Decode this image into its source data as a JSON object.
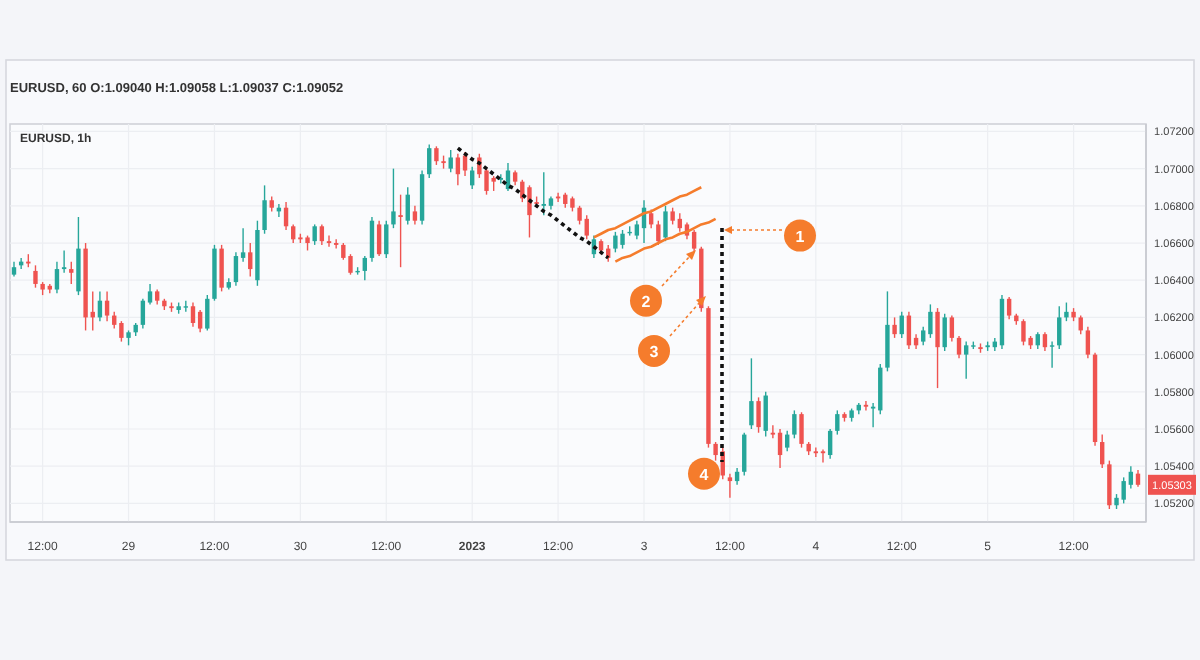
{
  "chart_data": {
    "type": "candlestick",
    "title": "EURUSD, 60 O:1.09040 H:1.09058 L:1.09037 C:1.09052",
    "subtitle": "EURUSD, 1h",
    "categories": [
      null,
      null,
      null,
      null,
      "12:00",
      null,
      null,
      null,
      null,
      null,
      null,
      null,
      null,
      null,
      null,
      null,
      "29",
      null,
      null,
      null,
      null,
      null,
      null,
      null,
      null,
      null,
      null,
      null,
      "12:00",
      null,
      null,
      null,
      null,
      null,
      null,
      null,
      null,
      null,
      null,
      null,
      "30",
      null,
      null,
      null,
      null,
      null,
      null,
      null,
      null,
      null,
      null,
      null,
      "12:00",
      null,
      null,
      null,
      null,
      null,
      null,
      null,
      null,
      null,
      null,
      null,
      "2023",
      null,
      null,
      null,
      null,
      null,
      null,
      null,
      null,
      null,
      null,
      null,
      "12:00",
      null,
      null,
      null,
      null,
      null,
      null,
      null,
      null,
      null,
      null,
      null,
      "3",
      null,
      null,
      null,
      null,
      null,
      null,
      null,
      null,
      null,
      null,
      null,
      "12:00",
      null,
      null,
      null,
      null,
      null,
      null,
      null,
      null,
      null,
      null,
      null,
      "4",
      null,
      null,
      null,
      null,
      null,
      null,
      null,
      null,
      null,
      null,
      null,
      "12:00",
      null,
      null,
      null,
      null,
      null,
      null,
      null,
      null,
      null,
      null,
      null,
      "5",
      null,
      null,
      null,
      null,
      null,
      null,
      null,
      null,
      null,
      null,
      null,
      "12:00",
      null,
      null,
      null,
      null,
      null,
      null,
      null,
      null,
      null
    ],
    "ohlc": [
      [
        1.0643,
        1.065,
        1.0642,
        1.0647
      ],
      [
        1.0648,
        1.0652,
        1.0646,
        1.065
      ],
      [
        1.065,
        1.0654,
        1.0647,
        1.0649
      ],
      [
        1.0645,
        1.0648,
        1.0636,
        1.0638
      ],
      [
        1.0638,
        1.0639,
        1.0632,
        1.0635
      ],
      [
        1.0637,
        1.0638,
        1.0633,
        1.0635
      ],
      [
        1.0635,
        1.065,
        1.0633,
        1.0646
      ],
      [
        1.0646,
        1.0656,
        1.0644,
        1.0647
      ],
      [
        1.0646,
        1.065,
        1.0638,
        1.0644
      ],
      [
        1.0634,
        1.0674,
        1.0632,
        1.0657
      ],
      [
        1.0657,
        1.066,
        1.0613,
        1.062
      ],
      [
        1.0623,
        1.0634,
        1.0613,
        1.062
      ],
      [
        1.062,
        1.0634,
        1.0618,
        1.0629
      ],
      [
        1.0629,
        1.0634,
        1.0618,
        1.0621
      ],
      [
        1.0621,
        1.0623,
        1.0614,
        1.0616
      ],
      [
        1.0617,
        1.0618,
        1.0607,
        1.0609
      ],
      [
        1.0609,
        1.0613,
        1.0605,
        1.0612
      ],
      [
        1.0612,
        1.0617,
        1.061,
        1.0616
      ],
      [
        1.0616,
        1.063,
        1.0614,
        1.0629
      ],
      [
        1.0628,
        1.0638,
        1.0627,
        1.0634
      ],
      [
        1.0634,
        1.0635,
        1.0627,
        1.0629
      ],
      [
        1.0629,
        1.063,
        1.0624,
        1.0626
      ],
      [
        1.0626,
        1.0628,
        1.0623,
        1.0625
      ],
      [
        1.0624,
        1.0628,
        1.0622,
        1.0626
      ],
      [
        1.0626,
        1.0629,
        1.0623,
        1.0626
      ],
      [
        1.0626,
        1.0628,
        1.0615,
        1.0617
      ],
      [
        1.0623,
        1.0624,
        1.0612,
        1.0614
      ],
      [
        1.0614,
        1.0632,
        1.0613,
        1.063
      ],
      [
        1.063,
        1.0659,
        1.0629,
        1.0657
      ],
      [
        1.0657,
        1.0659,
        1.0634,
        1.0636
      ],
      [
        1.0636,
        1.0641,
        1.0635,
        1.0639
      ],
      [
        1.0639,
        1.0655,
        1.0637,
        1.0653
      ],
      [
        1.0652,
        1.0668,
        1.065,
        1.0655
      ],
      [
        1.0655,
        1.066,
        1.0642,
        1.0646
      ],
      [
        1.064,
        1.0672,
        1.0637,
        1.0667
      ],
      [
        1.0667,
        1.0691,
        1.0665,
        1.0683
      ],
      [
        1.0683,
        1.0685,
        1.0677,
        1.0679
      ],
      [
        1.0677,
        1.0681,
        1.0674,
        1.0679
      ],
      [
        1.0679,
        1.0682,
        1.0667,
        1.0669
      ],
      [
        1.0669,
        1.067,
        1.066,
        1.0662
      ],
      [
        1.0663,
        1.0665,
        1.066,
        1.0662
      ],
      [
        1.0663,
        1.0664,
        1.0656,
        1.066
      ],
      [
        1.0661,
        1.067,
        1.0659,
        1.0669
      ],
      [
        1.0669,
        1.067,
        1.0659,
        1.0661
      ],
      [
        1.0661,
        1.0664,
        1.0658,
        1.066
      ],
      [
        1.066,
        1.0662,
        1.0657,
        1.0659
      ],
      [
        1.0659,
        1.066,
        1.0651,
        1.0652
      ],
      [
        1.0653,
        1.0654,
        1.0643,
        1.0644
      ],
      [
        1.0645,
        1.0647,
        1.0643,
        1.0645
      ],
      [
        1.0645,
        1.0653,
        1.064,
        1.0652
      ],
      [
        1.0652,
        1.0674,
        1.065,
        1.0672
      ],
      [
        1.067,
        1.0672,
        1.0653,
        1.0654
      ],
      [
        1.0654,
        1.0672,
        1.0652,
        1.067
      ],
      [
        1.067,
        1.07,
        1.0668,
        1.0677
      ],
      [
        1.0675,
        1.0686,
        1.0647,
        1.0674
      ],
      [
        1.0672,
        1.069,
        1.067,
        1.0686
      ],
      [
        1.0677,
        1.068,
        1.067,
        1.0672
      ],
      [
        1.0672,
        1.0699,
        1.067,
        1.0697
      ],
      [
        1.0697,
        1.0713,
        1.0695,
        1.0711
      ],
      [
        1.0711,
        1.0712,
        1.0702,
        1.0704
      ],
      [
        1.0704,
        1.0707,
        1.07,
        1.0703
      ],
      [
        1.07,
        1.071,
        1.0698,
        1.0706
      ],
      [
        1.0706,
        1.0708,
        1.0691,
        1.0697
      ],
      [
        1.0707,
        1.0709,
        1.0696,
        1.0699
      ],
      [
        1.0691,
        1.0701,
        1.0689,
        1.0699
      ],
      [
        1.0706,
        1.0708,
        1.0695,
        1.0697
      ],
      [
        1.0699,
        1.07,
        1.0686,
        1.0688
      ],
      [
        1.0695,
        1.0696,
        1.0688,
        1.0693
      ],
      [
        1.0694,
        1.0697,
        1.0692,
        1.0695
      ],
      [
        1.0689,
        1.0703,
        1.0688,
        1.0699
      ],
      [
        1.0698,
        1.0699,
        1.0691,
        1.0693
      ],
      [
        1.0693,
        1.0694,
        1.0682,
        1.0684
      ],
      [
        1.069,
        1.0691,
        1.0663,
        1.0675
      ],
      [
        1.0682,
        1.0685,
        1.0679,
        1.0681
      ],
      [
        1.068,
        1.0698,
        1.0675,
        1.0681
      ],
      [
        1.068,
        1.0685,
        1.0678,
        1.0684
      ],
      [
        1.0685,
        1.0687,
        1.0682,
        1.0684
      ],
      [
        1.0686,
        1.0687,
        1.0679,
        1.0681
      ],
      [
        1.0684,
        1.0685,
        1.0677,
        1.0679
      ],
      [
        1.0679,
        1.068,
        1.067,
        1.0672
      ],
      [
        1.0673,
        1.0675,
        1.0662,
        1.0664
      ],
      [
        1.0654,
        1.0664,
        1.0652,
        1.0662
      ],
      [
        1.0661,
        1.0662,
        1.0654,
        1.0656
      ],
      [
        1.0657,
        1.0659,
        1.065,
        1.0652
      ],
      [
        1.0657,
        1.0666,
        1.0655,
        1.0664
      ],
      [
        1.0659,
        1.0667,
        1.0657,
        1.0665
      ],
      [
        1.0666,
        1.0669,
        1.0664,
        1.0666
      ],
      [
        1.0664,
        1.0672,
        1.0662,
        1.067
      ],
      [
        1.0668,
        1.0683,
        1.066,
        1.0679
      ],
      [
        1.0676,
        1.0678,
        1.0668,
        1.067
      ],
      [
        1.067,
        1.0672,
        1.0659,
        1.0661
      ],
      [
        1.0663,
        1.068,
        1.0661,
        1.0677
      ],
      [
        1.0677,
        1.0679,
        1.067,
        1.0672
      ],
      [
        1.0673,
        1.0676,
        1.0666,
        1.0668
      ],
      [
        1.067,
        1.0671,
        1.0662,
        1.0664
      ],
      [
        1.0666,
        1.0667,
        1.0655,
        1.0657
      ],
      [
        1.0657,
        1.0658,
        1.0623,
        1.0625
      ],
      [
        1.0625,
        1.0626,
        1.055,
        1.0552
      ],
      [
        1.0552,
        1.0553,
        1.0543,
        1.0546
      ],
      [
        1.0548,
        1.055,
        1.0533,
        1.0535
      ],
      [
        1.0534,
        1.0536,
        1.0523,
        1.0532
      ],
      [
        1.0532,
        1.0539,
        1.053,
        1.0537
      ],
      [
        1.0537,
        1.0558,
        1.0535,
        1.0557
      ],
      [
        1.0562,
        1.0598,
        1.056,
        1.0575
      ],
      [
        1.0575,
        1.0577,
        1.0558,
        1.0561
      ],
      [
        1.0559,
        1.058,
        1.0556,
        1.0578
      ],
      [
        1.0558,
        1.0562,
        1.0555,
        1.0557
      ],
      [
        1.0558,
        1.056,
        1.0539,
        1.0546
      ],
      [
        1.055,
        1.0559,
        1.0548,
        1.0557
      ],
      [
        1.0557,
        1.057,
        1.0555,
        1.0568
      ],
      [
        1.0568,
        1.0569,
        1.055,
        1.0552
      ],
      [
        1.0552,
        1.0553,
        1.0546,
        1.0548
      ],
      [
        1.0548,
        1.055,
        1.0545,
        1.0547
      ],
      [
        1.0548,
        1.0549,
        1.0542,
        1.0547
      ],
      [
        1.0546,
        1.056,
        1.0544,
        1.0559
      ],
      [
        1.0559,
        1.057,
        1.0557,
        1.0568
      ],
      [
        1.0568,
        1.0569,
        1.0564,
        1.0566
      ],
      [
        1.0566,
        1.0571,
        1.0564,
        1.057
      ],
      [
        1.057,
        1.0574,
        1.0568,
        1.0573
      ],
      [
        1.0573,
        1.0575,
        1.057,
        1.0572
      ],
      [
        1.0571,
        1.0574,
        1.0561,
        1.0572
      ],
      [
        1.057,
        1.0595,
        1.0568,
        1.0593
      ],
      [
        1.0593,
        1.0634,
        1.0591,
        1.0616
      ],
      [
        1.0616,
        1.062,
        1.0609,
        1.0611
      ],
      [
        1.0611,
        1.0623,
        1.0609,
        1.0621
      ],
      [
        1.0621,
        1.0623,
        1.0603,
        1.0605
      ],
      [
        1.0609,
        1.0611,
        1.0603,
        1.0605
      ],
      [
        1.0607,
        1.0615,
        1.0605,
        1.0613
      ],
      [
        1.0611,
        1.0627,
        1.0609,
        1.0623
      ],
      [
        1.0623,
        1.0625,
        1.0582,
        1.0604
      ],
      [
        1.0604,
        1.0622,
        1.0602,
        1.062
      ],
      [
        1.062,
        1.0621,
        1.0607,
        1.0609
      ],
      [
        1.0609,
        1.061,
        1.0598,
        1.06
      ],
      [
        1.06,
        1.0607,
        1.0587,
        1.0605
      ],
      [
        1.0605,
        1.0607,
        1.0603,
        1.0605
      ],
      [
        1.0604,
        1.0606,
        1.0601,
        1.0603
      ],
      [
        1.0604,
        1.0607,
        1.0602,
        1.0605
      ],
      [
        1.0604,
        1.0609,
        1.0602,
        1.0607
      ],
      [
        1.0605,
        1.0632,
        1.0603,
        1.063
      ],
      [
        1.063,
        1.0631,
        1.0619,
        1.0621
      ],
      [
        1.0621,
        1.0622,
        1.0616,
        1.0618
      ],
      [
        1.0618,
        1.0619,
        1.0605,
        1.0607
      ],
      [
        1.0609,
        1.061,
        1.0603,
        1.0605
      ],
      [
        1.0605,
        1.0612,
        1.0603,
        1.0611
      ],
      [
        1.0611,
        1.0612,
        1.0602,
        1.0604
      ],
      [
        1.0605,
        1.0607,
        1.0593,
        1.0605
      ],
      [
        1.0605,
        1.0626,
        1.0603,
        1.062
      ],
      [
        1.062,
        1.0628,
        1.0618,
        1.0623
      ],
      [
        1.0623,
        1.0625,
        1.0618,
        1.062
      ],
      [
        1.062,
        1.0621,
        1.0611,
        1.0613
      ],
      [
        1.0613,
        1.0615,
        1.0598,
        1.06
      ],
      [
        1.06,
        1.0601,
        1.0551,
        1.0553
      ],
      [
        1.0553,
        1.0557,
        1.0539,
        1.0541
      ],
      [
        1.0541,
        1.0543,
        1.0517,
        1.0519
      ],
      [
        1.0519,
        1.0525,
        1.0517,
        1.0523
      ],
      [
        1.0522,
        1.0534,
        1.052,
        1.0532
      ],
      [
        1.053,
        1.054,
        1.0528,
        1.0537
      ],
      [
        1.0536,
        1.0538,
        1.0529,
        1.053
      ]
    ],
    "colors": [
      "#26a69a",
      "#26a69a",
      "#ef5350",
      "#ef5350",
      "#ef5350",
      "#ef5350",
      "#26a69a",
      "#26a69a",
      "#ef5350",
      "#26a69a",
      "#ef5350",
      "#ef5350",
      "#26a69a",
      "#ef5350",
      "#ef5350",
      "#ef5350",
      "#26a69a",
      "#26a69a",
      "#26a69a",
      "#26a69a",
      "#ef5350",
      "#ef5350",
      "#ef5350",
      "#26a69a",
      "#26a69a",
      "#ef5350",
      "#ef5350",
      "#26a69a",
      "#26a69a",
      "#ef5350",
      "#26a69a",
      "#26a69a",
      "#26a69a",
      "#ef5350",
      "#26a69a",
      "#26a69a",
      "#ef5350",
      "#26a69a",
      "#ef5350",
      "#ef5350",
      "#ef5350",
      "#ef5350",
      "#26a69a",
      "#ef5350",
      "#ef5350",
      "#ef5350",
      "#ef5350",
      "#ef5350",
      "#26a69a",
      "#26a69a",
      "#26a69a",
      "#ef5350",
      "#26a69a",
      "#26a69a",
      "#ef5350",
      "#26a69a",
      "#ef5350",
      "#26a69a",
      "#26a69a",
      "#ef5350",
      "#ef5350",
      "#26a69a",
      "#ef5350",
      "#ef5350",
      "#26a69a",
      "#ef5350",
      "#ef5350",
      "#ef5350",
      "#26a69a",
      "#26a69a",
      "#ef5350",
      "#ef5350",
      "#ef5350",
      "#ef5350",
      "#26a69a",
      "#26a69a",
      "#ef5350",
      "#ef5350",
      "#ef5350",
      "#ef5350",
      "#ef5350",
      "#26a69a",
      "#ef5350",
      "#ef5350",
      "#26a69a",
      "#26a69a",
      "#26a69a",
      "#26a69a",
      "#26a69a",
      "#ef5350",
      "#ef5350",
      "#26a69a",
      "#ef5350",
      "#ef5350",
      "#ef5350",
      "#ef5350",
      "#ef5350",
      "#ef5350",
      "#ef5350",
      "#ef5350",
      "#ef5350",
      "#26a69a",
      "#26a69a",
      "#26a69a",
      "#ef5350",
      "#26a69a",
      "#ef5350",
      "#ef5350",
      "#26a69a",
      "#26a69a",
      "#ef5350",
      "#ef5350",
      "#ef5350",
      "#ef5350",
      "#26a69a",
      "#26a69a",
      "#ef5350",
      "#26a69a",
      "#26a69a",
      "#ef5350",
      "#26a69a",
      "#26a69a",
      "#26a69a",
      "#ef5350",
      "#26a69a",
      "#ef5350",
      "#ef5350",
      "#26a69a",
      "#26a69a",
      "#ef5350",
      "#26a69a",
      "#ef5350",
      "#ef5350",
      "#26a69a",
      "#26a69a",
      "#ef5350",
      "#26a69a",
      "#26a69a",
      "#26a69a",
      "#ef5350",
      "#ef5350",
      "#ef5350",
      "#ef5350",
      "#26a69a",
      "#ef5350",
      "#26a69a",
      "#26a69a",
      "#26a69a",
      "#ef5350",
      "#ef5350",
      "#ef5350",
      "#ef5350",
      "#ef5350",
      "#ef5350",
      "#26a69a",
      "#26a69a",
      "#26a69a",
      "#ef5350"
    ],
    "series": [
      {
        "type": "line",
        "color": "#111111",
        "line_style": "dotted",
        "values": [
          null,
          null,
          null,
          null,
          null,
          null,
          null,
          null,
          null,
          null,
          null,
          null,
          null,
          null,
          null,
          null,
          null,
          null,
          null,
          null,
          null,
          null,
          null,
          null,
          null,
          null,
          null,
          null,
          null,
          null,
          null,
          null,
          null,
          null,
          null,
          null,
          null,
          null,
          null,
          null,
          null,
          null,
          null,
          null,
          null,
          null,
          null,
          null,
          null,
          null,
          null,
          null,
          null,
          null,
          null,
          null,
          null,
          null,
          null,
          null,
          null,
          null,
          1.0711,
          1.0708,
          1.0705,
          1.0703,
          1.07,
          1.0697,
          1.0694,
          1.0691,
          1.0689,
          1.0686,
          1.0683,
          1.068,
          1.0677,
          1.0675,
          1.0672,
          1.0669,
          1.0666,
          1.0663,
          1.0661,
          1.0658,
          1.0655,
          1.0652,
          null,
          null,
          null,
          null,
          null,
          null,
          null,
          null,
          null,
          null,
          null,
          null,
          null,
          null,
          null,
          null,
          null,
          null,
          null,
          null,
          null,
          null,
          null,
          null,
          null,
          null,
          null,
          null,
          null,
          null,
          null,
          null,
          null,
          null,
          null,
          null,
          null,
          null,
          null,
          null,
          null,
          null,
          null,
          null,
          null,
          null,
          null,
          null,
          null,
          null,
          null,
          null,
          null,
          null,
          null,
          null,
          null,
          null,
          null,
          null,
          null,
          null,
          null,
          null,
          null,
          null,
          null,
          null,
          null,
          null,
          null,
          null,
          null,
          null
        ]
      },
      {
        "type": "line",
        "color": "#f57c2c",
        "line_style": "solid",
        "values": [
          null,
          null,
          null,
          null,
          null,
          null,
          null,
          null,
          null,
          null,
          null,
          null,
          null,
          null,
          null,
          null,
          null,
          null,
          null,
          null,
          null,
          null,
          null,
          null,
          null,
          null,
          null,
          null,
          null,
          null,
          null,
          null,
          null,
          null,
          null,
          null,
          null,
          null,
          null,
          null,
          null,
          null,
          null,
          null,
          null,
          null,
          null,
          null,
          null,
          null,
          null,
          null,
          null,
          null,
          null,
          null,
          null,
          null,
          null,
          null,
          null,
          null,
          null,
          null,
          null,
          null,
          null,
          null,
          null,
          null,
          null,
          null,
          null,
          null,
          null,
          null,
          null,
          null,
          null,
          null,
          null,
          1.0663,
          1.0665,
          1.0667,
          1.0668,
          1.067,
          1.0672,
          1.0674,
          1.0676,
          1.0677,
          1.0679,
          1.0681,
          1.0683,
          1.0685,
          1.0686,
          1.0688,
          1.069,
          null,
          null,
          null,
          null,
          null,
          null,
          null,
          null,
          null,
          null,
          null,
          null,
          null,
          null,
          null,
          null,
          null,
          null,
          null,
          null,
          null,
          null,
          null,
          null,
          null,
          null,
          null,
          null,
          null,
          null,
          null,
          null,
          null,
          null,
          null,
          null,
          null,
          null,
          null,
          null,
          null,
          null,
          null,
          null,
          null,
          null,
          null,
          null,
          null,
          null,
          null,
          null,
          null,
          null,
          null,
          null,
          null,
          null,
          null,
          null,
          null
        ]
      },
      {
        "type": "line",
        "color": "#f57c2c",
        "line_style": "solid",
        "values": [
          null,
          null,
          null,
          null,
          null,
          null,
          null,
          null,
          null,
          null,
          null,
          null,
          null,
          null,
          null,
          null,
          null,
          null,
          null,
          null,
          null,
          null,
          null,
          null,
          null,
          null,
          null,
          null,
          null,
          null,
          null,
          null,
          null,
          null,
          null,
          null,
          null,
          null,
          null,
          null,
          null,
          null,
          null,
          null,
          null,
          null,
          null,
          null,
          null,
          null,
          null,
          null,
          null,
          null,
          null,
          null,
          null,
          null,
          null,
          null,
          null,
          null,
          null,
          null,
          null,
          null,
          null,
          null,
          null,
          null,
          null,
          null,
          null,
          null,
          null,
          null,
          null,
          null,
          null,
          null,
          null,
          null,
          null,
          null,
          1.065,
          1.0652,
          1.0653,
          1.0655,
          1.0657,
          1.0658,
          1.066,
          1.0662,
          1.0663,
          1.0665,
          1.0666,
          1.0668,
          1.067,
          1.0671,
          1.0673,
          null,
          null,
          null,
          null,
          null,
          null,
          null,
          null,
          null,
          null,
          null,
          null,
          null,
          null,
          null,
          null,
          null,
          null,
          null,
          null,
          null,
          null,
          null,
          null,
          null,
          null,
          null,
          null,
          null,
          null,
          null,
          null,
          null,
          null,
          null,
          null,
          null,
          null,
          null,
          null,
          null,
          null,
          null,
          null,
          null,
          null,
          null,
          null,
          null,
          null,
          null,
          null,
          null,
          null,
          null,
          null,
          null,
          null,
          null
        ]
      }
    ],
    "ylim": [
      1.051,
      1.0724
    ],
    "yticks": [
      {
        "value": 1.052,
        "label": "1.05200"
      },
      {
        "value": 1.054,
        "label": "1.05400"
      },
      {
        "value": 1.056,
        "label": "1.05600"
      },
      {
        "value": 1.058,
        "label": "1.05800"
      },
      {
        "value": 1.06,
        "label": "1.06000"
      },
      {
        "value": 1.062,
        "label": "1.06200"
      },
      {
        "value": 1.064,
        "label": "1.06400"
      },
      {
        "value": 1.066,
        "label": "1.06600"
      },
      {
        "value": 1.068,
        "label": "1.06800"
      },
      {
        "value": 1.07,
        "label": "1.07000"
      },
      {
        "value": 1.072,
        "label": "1.07200"
      }
    ],
    "grid": true,
    "annotations": [
      {
        "text": "1",
        "y": 1.0664
      },
      {
        "text": "2",
        "y": 1.0629
      },
      {
        "text": "3",
        "y": 1.0602
      },
      {
        "text": "4",
        "y": 1.0536
      },
      {
        "text": "1.05303",
        "y": 1.053
      }
    ]
  }
}
